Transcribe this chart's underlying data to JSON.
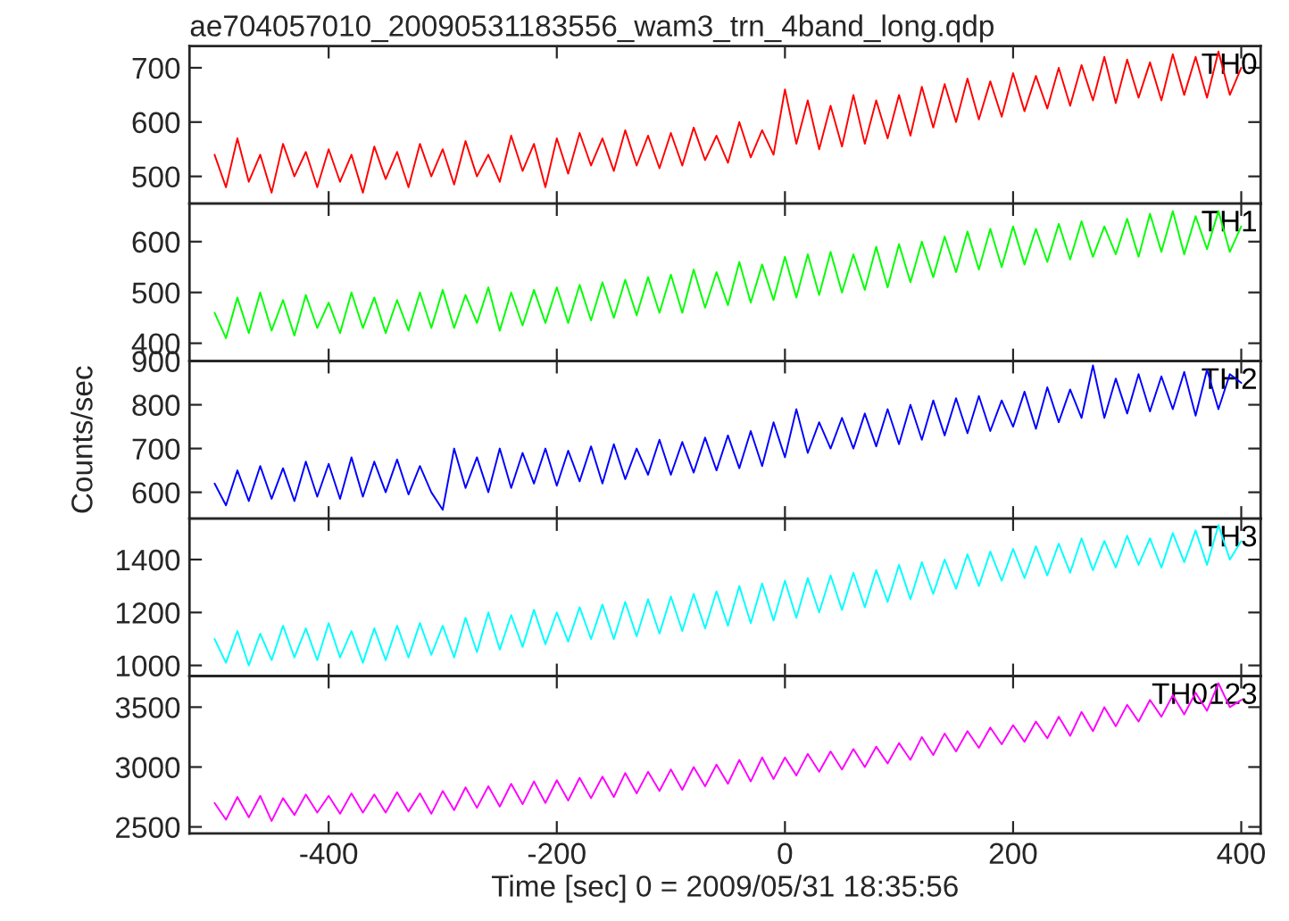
{
  "chart_data": [
    {
      "type": "line",
      "title": "ae704057010_20090531183556_wam3_trn_4band_long.qdp",
      "xlim": [
        -522,
        417
      ],
      "xticks": [
        -400,
        -200,
        0,
        200,
        400
      ],
      "ylim": [
        450,
        740
      ],
      "yticks": [
        500,
        600,
        700
      ],
      "tick_labels": "y",
      "grid": false,
      "legend": false,
      "marker": "none",
      "line_style": "solid",
      "x": [
        -500,
        -490,
        -480,
        -470,
        -460,
        -450,
        -440,
        -430,
        -420,
        -410,
        -400,
        -390,
        -380,
        -370,
        -360,
        -350,
        -340,
        -330,
        -320,
        -310,
        -300,
        -290,
        -280,
        -270,
        -260,
        -250,
        -240,
        -230,
        -220,
        -210,
        -200,
        -190,
        -180,
        -170,
        -160,
        -150,
        -140,
        -130,
        -120,
        -110,
        -100,
        -90,
        -80,
        -70,
        -60,
        -50,
        -40,
        -30,
        -20,
        -10,
        0,
        10,
        20,
        30,
        40,
        50,
        60,
        70,
        80,
        90,
        100,
        110,
        120,
        130,
        140,
        150,
        160,
        170,
        180,
        190,
        200,
        210,
        220,
        230,
        240,
        250,
        260,
        270,
        280,
        290,
        300,
        310,
        320,
        330,
        340,
        350,
        360,
        370,
        380,
        390,
        400
      ],
      "series": [
        {
          "name": "TH0",
          "color": "#ff0000",
          "values": [
            540,
            480,
            570,
            490,
            540,
            470,
            560,
            500,
            545,
            480,
            550,
            490,
            540,
            470,
            555,
            495,
            545,
            480,
            560,
            500,
            550,
            485,
            565,
            500,
            540,
            490,
            575,
            510,
            560,
            480,
            570,
            505,
            580,
            520,
            570,
            510,
            585,
            520,
            575,
            515,
            580,
            520,
            590,
            530,
            575,
            525,
            600,
            535,
            585,
            540,
            660,
            560,
            640,
            550,
            630,
            555,
            650,
            560,
            640,
            570,
            650,
            575,
            665,
            590,
            670,
            600,
            680,
            605,
            675,
            610,
            690,
            620,
            685,
            625,
            700,
            630,
            705,
            640,
            720,
            635,
            715,
            645,
            710,
            640,
            725,
            650,
            720,
            645,
            730,
            650,
            700
          ]
        }
      ]
    },
    {
      "type": "line",
      "xlim": [
        -522,
        417
      ],
      "xticks": [
        -400,
        -200,
        0,
        200,
        400
      ],
      "ylim": [
        365,
        675
      ],
      "yticks": [
        400,
        500,
        600
      ],
      "tick_labels": "y",
      "grid": false,
      "legend": false,
      "marker": "none",
      "line_style": "solid",
      "x": [
        -500,
        -490,
        -480,
        -470,
        -460,
        -450,
        -440,
        -430,
        -420,
        -410,
        -400,
        -390,
        -380,
        -370,
        -360,
        -350,
        -340,
        -330,
        -320,
        -310,
        -300,
        -290,
        -280,
        -270,
        -260,
        -250,
        -240,
        -230,
        -220,
        -210,
        -200,
        -190,
        -180,
        -170,
        -160,
        -150,
        -140,
        -130,
        -120,
        -110,
        -100,
        -90,
        -80,
        -70,
        -60,
        -50,
        -40,
        -30,
        -20,
        -10,
        0,
        10,
        20,
        30,
        40,
        50,
        60,
        70,
        80,
        90,
        100,
        110,
        120,
        130,
        140,
        150,
        160,
        170,
        180,
        190,
        200,
        210,
        220,
        230,
        240,
        250,
        260,
        270,
        280,
        290,
        300,
        310,
        320,
        330,
        340,
        350,
        360,
        370,
        380,
        390,
        400
      ],
      "series": [
        {
          "name": "TH1",
          "color": "#00ff00",
          "values": [
            460,
            410,
            490,
            420,
            500,
            425,
            485,
            415,
            495,
            430,
            480,
            420,
            500,
            430,
            490,
            420,
            485,
            425,
            500,
            430,
            505,
            430,
            495,
            440,
            510,
            425,
            500,
            435,
            505,
            440,
            510,
            440,
            515,
            445,
            520,
            450,
            525,
            455,
            530,
            460,
            535,
            460,
            545,
            470,
            540,
            475,
            560,
            480,
            555,
            485,
            570,
            490,
            575,
            495,
            580,
            500,
            575,
            505,
            590,
            510,
            595,
            520,
            600,
            530,
            610,
            540,
            620,
            545,
            625,
            550,
            630,
            555,
            625,
            560,
            635,
            565,
            640,
            570,
            630,
            575,
            645,
            570,
            655,
            580,
            660,
            575,
            650,
            585,
            660,
            580,
            630
          ]
        }
      ]
    },
    {
      "type": "line",
      "ylabel": "Counts/sec",
      "xlim": [
        -522,
        417
      ],
      "xticks": [
        -400,
        -200,
        0,
        200,
        400
      ],
      "ylim": [
        540,
        900
      ],
      "yticks": [
        600,
        700,
        800,
        900
      ],
      "tick_labels": "y",
      "grid": false,
      "legend": false,
      "marker": "none",
      "line_style": "solid",
      "x": [
        -500,
        -490,
        -480,
        -470,
        -460,
        -450,
        -440,
        -430,
        -420,
        -410,
        -400,
        -390,
        -380,
        -370,
        -360,
        -350,
        -340,
        -330,
        -320,
        -310,
        -300,
        -290,
        -280,
        -270,
        -260,
        -250,
        -240,
        -230,
        -220,
        -210,
        -200,
        -190,
        -180,
        -170,
        -160,
        -150,
        -140,
        -130,
        -120,
        -110,
        -100,
        -90,
        -80,
        -70,
        -60,
        -50,
        -40,
        -30,
        -20,
        -10,
        0,
        10,
        20,
        30,
        40,
        50,
        60,
        70,
        80,
        90,
        100,
        110,
        120,
        130,
        140,
        150,
        160,
        170,
        180,
        190,
        200,
        210,
        220,
        230,
        240,
        250,
        260,
        270,
        280,
        290,
        300,
        310,
        320,
        330,
        340,
        350,
        360,
        370,
        380,
        390,
        400
      ],
      "series": [
        {
          "name": "TH2",
          "color": "#0000ff",
          "values": [
            620,
            570,
            650,
            580,
            660,
            585,
            655,
            580,
            670,
            590,
            665,
            585,
            680,
            590,
            670,
            600,
            675,
            595,
            660,
            600,
            560,
            700,
            610,
            680,
            600,
            700,
            610,
            690,
            620,
            700,
            615,
            695,
            625,
            705,
            620,
            710,
            630,
            700,
            640,
            720,
            640,
            715,
            645,
            725,
            650,
            730,
            655,
            740,
            660,
            760,
            680,
            790,
            690,
            760,
            700,
            770,
            700,
            780,
            705,
            790,
            710,
            800,
            720,
            810,
            730,
            815,
            735,
            820,
            740,
            810,
            750,
            830,
            745,
            840,
            760,
            835,
            770,
            890,
            770,
            860,
            780,
            870,
            785,
            865,
            790,
            875,
            775,
            880,
            790,
            870,
            850
          ]
        }
      ]
    },
    {
      "type": "line",
      "xlim": [
        -522,
        417
      ],
      "xticks": [
        -400,
        -200,
        0,
        200,
        400
      ],
      "ylim": [
        960,
        1555
      ],
      "yticks": [
        1000,
        1200,
        1400
      ],
      "tick_labels": "y",
      "grid": false,
      "legend": false,
      "marker": "none",
      "line_style": "solid",
      "x": [
        -500,
        -490,
        -480,
        -470,
        -460,
        -450,
        -440,
        -430,
        -420,
        -410,
        -400,
        -390,
        -380,
        -370,
        -360,
        -350,
        -340,
        -330,
        -320,
        -310,
        -300,
        -290,
        -280,
        -270,
        -260,
        -250,
        -240,
        -230,
        -220,
        -210,
        -200,
        -190,
        -180,
        -170,
        -160,
        -150,
        -140,
        -130,
        -120,
        -110,
        -100,
        -90,
        -80,
        -70,
        -60,
        -50,
        -40,
        -30,
        -20,
        -10,
        0,
        10,
        20,
        30,
        40,
        50,
        60,
        70,
        80,
        90,
        100,
        110,
        120,
        130,
        140,
        150,
        160,
        170,
        180,
        190,
        200,
        210,
        220,
        230,
        240,
        250,
        260,
        270,
        280,
        290,
        300,
        310,
        320,
        330,
        340,
        350,
        360,
        370,
        380,
        390,
        400
      ],
      "series": [
        {
          "name": "TH3",
          "color": "#00ffff",
          "values": [
            1100,
            1010,
            1130,
            1000,
            1120,
            1020,
            1150,
            1030,
            1140,
            1020,
            1160,
            1030,
            1130,
            1010,
            1140,
            1020,
            1150,
            1030,
            1160,
            1040,
            1150,
            1030,
            1180,
            1050,
            1200,
            1060,
            1190,
            1070,
            1210,
            1080,
            1200,
            1090,
            1220,
            1100,
            1230,
            1100,
            1240,
            1110,
            1250,
            1120,
            1260,
            1130,
            1270,
            1140,
            1280,
            1150,
            1300,
            1160,
            1310,
            1170,
            1320,
            1180,
            1330,
            1200,
            1340,
            1210,
            1350,
            1220,
            1360,
            1240,
            1380,
            1250,
            1390,
            1270,
            1400,
            1290,
            1420,
            1300,
            1430,
            1320,
            1440,
            1330,
            1450,
            1340,
            1460,
            1350,
            1480,
            1360,
            1470,
            1370,
            1490,
            1380,
            1480,
            1370,
            1500,
            1390,
            1510,
            1380,
            1530,
            1400,
            1470
          ]
        }
      ]
    },
    {
      "type": "line",
      "xlabel": "Time [sec] 0 = 2009/05/31 18:35:56",
      "xlim": [
        -522,
        417
      ],
      "xticks": [
        -400,
        -200,
        0,
        200,
        400
      ],
      "ylim": [
        2445,
        3760
      ],
      "yticks": [
        2500,
        3000,
        3500
      ],
      "grid": false,
      "legend": false,
      "marker": "none",
      "line_style": "solid",
      "x": [
        -500,
        -490,
        -480,
        -470,
        -460,
        -450,
        -440,
        -430,
        -420,
        -410,
        -400,
        -390,
        -380,
        -370,
        -360,
        -350,
        -340,
        -330,
        -320,
        -310,
        -300,
        -290,
        -280,
        -270,
        -260,
        -250,
        -240,
        -230,
        -220,
        -210,
        -200,
        -190,
        -180,
        -170,
        -160,
        -150,
        -140,
        -130,
        -120,
        -110,
        -100,
        -90,
        -80,
        -70,
        -60,
        -50,
        -40,
        -30,
        -20,
        -10,
        0,
        10,
        20,
        30,
        40,
        50,
        60,
        70,
        80,
        90,
        100,
        110,
        120,
        130,
        140,
        150,
        160,
        170,
        180,
        190,
        200,
        210,
        220,
        230,
        240,
        250,
        260,
        270,
        280,
        290,
        300,
        310,
        320,
        330,
        340,
        350,
        360,
        370,
        380,
        390,
        400
      ],
      "series": [
        {
          "name": "TH0123",
          "color": "#ff00ff",
          "values": [
            2700,
            2560,
            2750,
            2580,
            2760,
            2550,
            2740,
            2600,
            2770,
            2620,
            2760,
            2610,
            2780,
            2620,
            2770,
            2620,
            2790,
            2630,
            2780,
            2610,
            2800,
            2640,
            2830,
            2660,
            2840,
            2670,
            2860,
            2690,
            2880,
            2700,
            2890,
            2720,
            2910,
            2740,
            2920,
            2750,
            2950,
            2780,
            2960,
            2800,
            2980,
            2810,
            3000,
            2840,
            3020,
            2860,
            3060,
            2880,
            3080,
            2900,
            3080,
            2930,
            3110,
            2960,
            3130,
            2980,
            3150,
            3000,
            3170,
            3030,
            3200,
            3060,
            3250,
            3100,
            3280,
            3130,
            3300,
            3160,
            3330,
            3190,
            3350,
            3210,
            3380,
            3240,
            3420,
            3260,
            3460,
            3300,
            3500,
            3340,
            3520,
            3380,
            3560,
            3420,
            3600,
            3440,
            3620,
            3470,
            3700,
            3500,
            3560
          ]
        }
      ]
    }
  ]
}
